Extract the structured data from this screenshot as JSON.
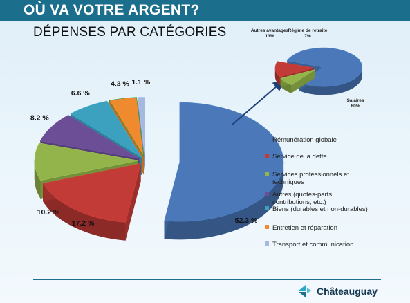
{
  "header": {
    "title": "OÙ VA VOTRE ARGENT?"
  },
  "subtitle": "DÉPENSES PAR CATÉGORIES",
  "brand": {
    "name": "Châteauguay"
  },
  "colors": {
    "header": "#1b6f8c",
    "text": "#111111"
  },
  "chart_data": [
    {
      "type": "pie",
      "title": "DÉPENSES PAR CATÉGORIES",
      "categories": [
        "Rémunération globale",
        "Service de la dette",
        "Services professionnels et techniques",
        "Autres (quotes-parts, contributions, etc.)",
        "Biens (durables et non-durables)",
        "Entretien et réparation",
        "Transport et communication"
      ],
      "values": [
        52.3,
        17.2,
        10.2,
        8.2,
        6.6,
        4.3,
        1.1
      ],
      "value_labels": [
        "52.3 %",
        "17.2 %",
        "10.2 %",
        "8.2 %",
        "6.6 %",
        "4.3 %",
        "1.1 %"
      ],
      "colors": [
        "#4a78b8",
        "#c23b37",
        "#92b44a",
        "#6c4e97",
        "#3ba1be",
        "#ef8a2f",
        "#a4b8e0"
      ],
      "legend": "right",
      "style": "3d-exploded"
    },
    {
      "type": "pie",
      "categories": [
        "Salaires",
        "Autres avantages",
        "Régime de retraite"
      ],
      "values": [
        80,
        13,
        7
      ],
      "value_labels": [
        "80%",
        "13%",
        "7%"
      ],
      "colors": [
        "#4a78b8",
        "#c23b37",
        "#92b44a"
      ],
      "style": "3d-exploded"
    }
  ]
}
